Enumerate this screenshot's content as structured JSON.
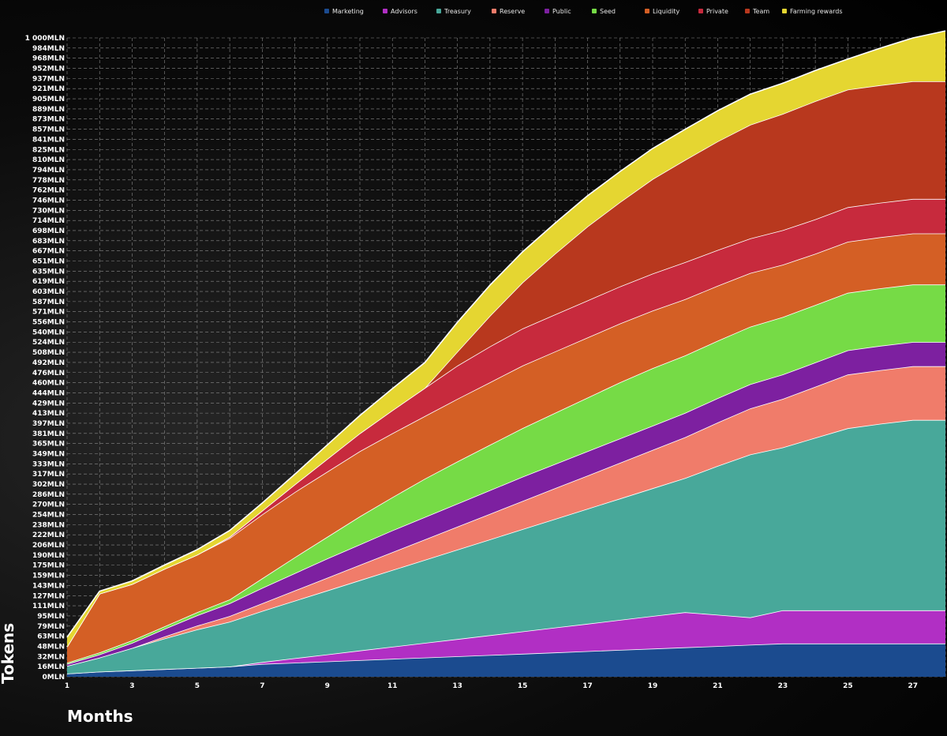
{
  "chart_data": {
    "type": "area",
    "stacked": true,
    "xlabel": "Months",
    "ylabel": "Tokens",
    "xlim": [
      1,
      28
    ],
    "ylim": [
      0,
      1000
    ],
    "grid": true,
    "legend_position": "top",
    "x_ticks": [
      "1",
      "3",
      "5",
      "7",
      "9",
      "11",
      "13",
      "15",
      "17",
      "19",
      "21",
      "23",
      "25",
      "27"
    ],
    "y_ticks": [
      "0MLN",
      "16MLN",
      "32MLN",
      "48MLN",
      "63MLN",
      "79MLN",
      "95MLN",
      "111MLN",
      "127MLN",
      "143MLN",
      "159MLN",
      "175MLN",
      "190MLN",
      "206MLN",
      "222MLN",
      "238MLN",
      "254MLN",
      "270MLN",
      "286MLN",
      "302MLN",
      "317MLN",
      "333MLN",
      "349MLN",
      "365MLN",
      "381MLN",
      "397MLN",
      "413MLN",
      "429MLN",
      "444MLN",
      "460MLN",
      "476MLN",
      "492MLN",
      "508MLN",
      "524MLN",
      "540MLN",
      "556MLN",
      "571MLN",
      "587MLN",
      "603MLN",
      "619MLN",
      "635MLN",
      "651MLN",
      "667MLN",
      "683MLN",
      "698MLN",
      "714MLN",
      "730MLN",
      "746MLN",
      "762MLN",
      "778MLN",
      "794MLN",
      "810MLN",
      "825MLN",
      "841MLN",
      "857MLN",
      "873MLN",
      "889MLN",
      "905MLN",
      "921MLN",
      "937MLN",
      "952MLN",
      "968MLN",
      "984MLN",
      "1 000MLN"
    ],
    "x": [
      1,
      2,
      3,
      4,
      5,
      6,
      7,
      8,
      9,
      10,
      11,
      12,
      13,
      14,
      15,
      16,
      17,
      18,
      19,
      20,
      21,
      22,
      23,
      24,
      25,
      26,
      27,
      28
    ],
    "series": [
      {
        "name": "Marketing",
        "color": "#1b4b8f",
        "values": [
          5,
          8,
          10,
          12,
          14,
          16,
          20,
          22,
          24,
          26,
          28,
          30,
          32,
          34,
          36,
          38,
          40,
          42,
          44,
          46,
          48,
          50,
          52,
          52,
          52,
          52,
          52,
          52
        ]
      },
      {
        "name": "Advisors",
        "color": "#b12fc4",
        "values": [
          0,
          0,
          0,
          0,
          0,
          0,
          3,
          7,
          11,
          15,
          19,
          23,
          27,
          31,
          35,
          39,
          43,
          47,
          51,
          55,
          49,
          43,
          52,
          52,
          52,
          52,
          52,
          52
        ]
      },
      {
        "name": "Treasury",
        "color": "#48a89a",
        "values": [
          12,
          22,
          35,
          48,
          60,
          70,
          80,
          90,
          100,
          110,
          120,
          130,
          140,
          150,
          160,
          170,
          180,
          190,
          200,
          210,
          233,
          255,
          255,
          270,
          285,
          292,
          298,
          298
        ]
      },
      {
        "name": "Reserve",
        "color": "#f07c6a",
        "values": [
          0,
          0,
          0,
          3,
          6,
          9,
          12,
          16,
          20,
          24,
          28,
          32,
          36,
          40,
          44,
          48,
          52,
          56,
          60,
          64,
          68,
          72,
          76,
          80,
          84,
          84,
          84,
          84
        ]
      },
      {
        "name": "Public",
        "color": "#7d20a0",
        "values": [
          3,
          5,
          8,
          12,
          16,
          20,
          24,
          27,
          30,
          32,
          34,
          35,
          36,
          37,
          38,
          38,
          38,
          38,
          38,
          38,
          38,
          38,
          38,
          38,
          38,
          38,
          38,
          38
        ]
      },
      {
        "name": "Seed",
        "color": "#76db46",
        "values": [
          2,
          3,
          4,
          4,
          5,
          6,
          15,
          25,
          34,
          44,
          52,
          60,
          66,
          71,
          76,
          80,
          84,
          88,
          90,
          90,
          90,
          90,
          90,
          90,
          90,
          90,
          90,
          90
        ]
      },
      {
        "name": "Liquidity",
        "color": "#d45f25",
        "values": [
          25,
          92,
          88,
          90,
          90,
          96,
          100,
          102,
          102,
          102,
          100,
          98,
          98,
          98,
          98,
          96,
          94,
          92,
          90,
          88,
          86,
          84,
          82,
          80,
          80,
          80,
          80,
          80
        ]
      },
      {
        "name": "Private",
        "color": "#c72a3d",
        "values": [
          0,
          0,
          0,
          0,
          0,
          2,
          6,
          12,
          20,
          28,
          36,
          44,
          52,
          56,
          58,
          58,
          58,
          58,
          58,
          58,
          56,
          54,
          54,
          54,
          54,
          54,
          54,
          54
        ]
      },
      {
        "name": "Team",
        "color": "#b8381e",
        "values": [
          0,
          0,
          0,
          0,
          0,
          0,
          0,
          0,
          0,
          0,
          0,
          0,
          22,
          48,
          72,
          95,
          116,
          132,
          148,
          160,
          170,
          178,
          182,
          185,
          184,
          184,
          184,
          184
        ]
      },
      {
        "name": "Farming rewards",
        "color": "#e5d631",
        "values": [
          15,
          4,
          5,
          6,
          8,
          10,
          12,
          16,
          22,
          28,
          34,
          40,
          46,
          48,
          48,
          48,
          48,
          48,
          48,
          48,
          48,
          48,
          48,
          48,
          48,
          58,
          68,
          79
        ]
      }
    ]
  }
}
